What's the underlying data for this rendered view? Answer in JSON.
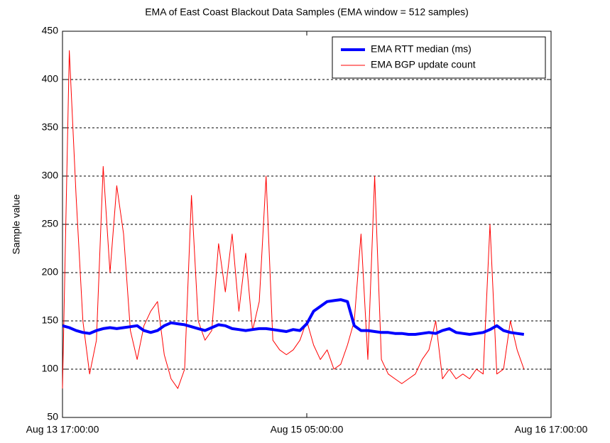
{
  "chart_data": {
    "type": "line",
    "title": "EMA of East Coast Blackout Data Samples (EMA window = 512 samples)",
    "y_label": "Sample value",
    "x": [
      "Aug 13 17:00:00",
      "Aug 13 18:00:00",
      "Aug 13 19:00:00",
      "Aug 13 20:00:00",
      "Aug 13 21:00:00",
      "Aug 13 22:00:00",
      "Aug 13 23:00:00",
      "Aug 14 00:00:00",
      "Aug 14 01:00:00",
      "Aug 14 02:00:00",
      "Aug 14 03:00:00",
      "Aug 14 04:00:00",
      "Aug 14 05:00:00",
      "Aug 14 06:00:00",
      "Aug 14 07:00:00",
      "Aug 14 08:00:00",
      "Aug 14 09:00:00",
      "Aug 14 10:00:00",
      "Aug 14 11:00:00",
      "Aug 14 12:00:00",
      "Aug 14 13:00:00",
      "Aug 14 14:00:00",
      "Aug 14 15:00:00",
      "Aug 14 16:00:00",
      "Aug 14 17:00:00",
      "Aug 14 18:00:00",
      "Aug 14 19:00:00",
      "Aug 14 20:00:00",
      "Aug 14 21:00:00",
      "Aug 14 22:00:00",
      "Aug 14 23:00:00",
      "Aug 15 00:00:00",
      "Aug 15 01:00:00",
      "Aug 15 02:00:00",
      "Aug 15 03:00:00",
      "Aug 15 04:00:00",
      "Aug 15 05:00:00",
      "Aug 15 06:00:00",
      "Aug 15 07:00:00",
      "Aug 15 08:00:00",
      "Aug 15 09:00:00",
      "Aug 15 10:00:00",
      "Aug 15 11:00:00",
      "Aug 15 12:00:00",
      "Aug 15 13:00:00",
      "Aug 15 14:00:00",
      "Aug 15 15:00:00",
      "Aug 15 16:00:00",
      "Aug 15 17:00:00",
      "Aug 15 18:00:00",
      "Aug 15 19:00:00",
      "Aug 15 20:00:00",
      "Aug 15 21:00:00",
      "Aug 15 22:00:00",
      "Aug 15 23:00:00",
      "Aug 16 00:00:00",
      "Aug 16 01:00:00",
      "Aug 16 02:00:00",
      "Aug 16 03:00:00",
      "Aug 16 04:00:00",
      "Aug 16 05:00:00",
      "Aug 16 06:00:00",
      "Aug 16 07:00:00",
      "Aug 16 08:00:00",
      "Aug 16 09:00:00",
      "Aug 16 10:00:00",
      "Aug 16 11:00:00",
      "Aug 16 12:00:00",
      "Aug 16 13:00:00"
    ],
    "series": [
      {
        "name": "EMA RTT median (ms)",
        "color": "#0000ff",
        "width": 4,
        "values": [
          145,
          143,
          140,
          138,
          137,
          140,
          142,
          143,
          142,
          143,
          144,
          145,
          140,
          138,
          140,
          145,
          148,
          147,
          146,
          144,
          142,
          140,
          143,
          146,
          145,
          142,
          141,
          140,
          141,
          142,
          142,
          141,
          140,
          139,
          141,
          140,
          147,
          160,
          165,
          170,
          171,
          172,
          170,
          145,
          140,
          140,
          139,
          138,
          138,
          137,
          137,
          136,
          136,
          137,
          138,
          137,
          140,
          142,
          138,
          137,
          136,
          137,
          138,
          141,
          145,
          140,
          138,
          137,
          136
        ]
      },
      {
        "name": "EMA BGP update count",
        "color": "#ff0000",
        "width": 1,
        "values": [
          80,
          430,
          280,
          150,
          95,
          130,
          310,
          200,
          290,
          240,
          140,
          110,
          145,
          160,
          170,
          115,
          90,
          80,
          100,
          280,
          150,
          130,
          140,
          230,
          180,
          240,
          160,
          220,
          140,
          170,
          300,
          130,
          120,
          115,
          120,
          130,
          150,
          125,
          110,
          120,
          100,
          105,
          125,
          150,
          240,
          110,
          300,
          110,
          95,
          90,
          85,
          90,
          95,
          110,
          120,
          150,
          90,
          100,
          90,
          95,
          90,
          100,
          95,
          250,
          95,
          100,
          150,
          120,
          100
        ]
      }
    ],
    "xlim": [
      "Aug 13 17:00:00",
      "Aug 16 17:00:00"
    ],
    "xticks": [
      "Aug 13 17:00:00",
      "Aug 15 05:00:00",
      "Aug 16 17:00:00"
    ],
    "ylim": [
      50,
      450
    ],
    "yticks": [
      50,
      100,
      150,
      200,
      250,
      300,
      350,
      400,
      450
    ],
    "grid": true,
    "legend": "upper right"
  }
}
